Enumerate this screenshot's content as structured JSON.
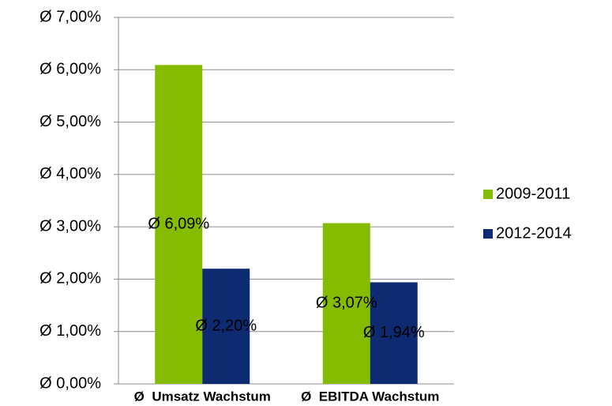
{
  "chart_data": {
    "type": "bar",
    "categories": [
      "Ø  Umsatz Wachstum",
      "Ø  EBITDA Wachstum"
    ],
    "series": [
      {
        "name": "2009-2011",
        "color": "#86bc00",
        "values": [
          6.09,
          3.07
        ],
        "value_labels": [
          "Ø 6,09%",
          "Ø 3,07%"
        ]
      },
      {
        "name": "2012-2014",
        "color": "#0e2a70",
        "values": [
          2.2,
          1.94
        ],
        "value_labels": [
          "Ø 2,20%",
          "Ø 1,94%"
        ]
      }
    ],
    "ylim": [
      0,
      7
    ],
    "yticks": [
      {
        "value": 0,
        "label": "Ø 0,00%"
      },
      {
        "value": 1,
        "label": "Ø 1,00%"
      },
      {
        "value": 2,
        "label": "Ø 2,00%"
      },
      {
        "value": 3,
        "label": "Ø 3,00%"
      },
      {
        "value": 4,
        "label": "Ø 4,00%"
      },
      {
        "value": 5,
        "label": "Ø 5,00%"
      },
      {
        "value": 6,
        "label": "Ø 6,00%"
      },
      {
        "value": 7,
        "label": "Ø 7,00%"
      }
    ],
    "grid": true,
    "legend": "right"
  }
}
